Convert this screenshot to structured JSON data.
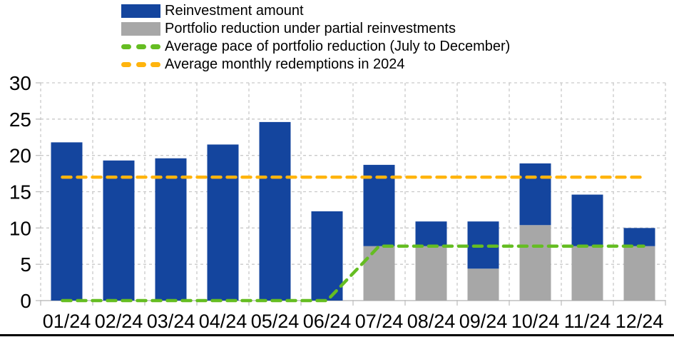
{
  "legend": {
    "items": [
      {
        "label": "Reinvestment amount",
        "color": "#14459E",
        "swatch": "rect"
      },
      {
        "label": "Portfolio reduction under partial reinvestments",
        "color": "#A7A7A7",
        "swatch": "rect"
      },
      {
        "label": "Average pace of portfolio reduction (July to December)",
        "color": "#65BD22",
        "swatch": "dash"
      },
      {
        "label": "Average monthly redemptions in 2024",
        "color": "#FFB40D",
        "swatch": "dash"
      }
    ]
  },
  "chart_data": {
    "type": "bar",
    "stacked": true,
    "title": "",
    "xlabel": "",
    "ylabel": "",
    "ylim": [
      0,
      30
    ],
    "yticks": [
      0,
      5,
      10,
      15,
      20,
      25,
      30
    ],
    "grid": true,
    "legend_position": "top-left",
    "categories": [
      "01/24",
      "02/24",
      "03/24",
      "04/24",
      "05/24",
      "06/24",
      "07/24",
      "08/24",
      "09/24",
      "10/24",
      "11/24",
      "12/24"
    ],
    "series": [
      {
        "name": "Portfolio reduction under partial reinvestments",
        "color": "#A7A7A7",
        "values": [
          0,
          0,
          0,
          0,
          0,
          0,
          7.5,
          7.5,
          4.4,
          10.4,
          7.5,
          7.5
        ]
      },
      {
        "name": "Reinvestment amount",
        "color": "#14459E",
        "values": [
          21.8,
          19.3,
          19.6,
          21.5,
          24.6,
          12.3,
          11.2,
          3.4,
          6.5,
          8.5,
          7.1,
          2.5
        ]
      }
    ],
    "lines": [
      {
        "name": "Average monthly redemptions in 2024",
        "color": "#FFB40D",
        "values": [
          17,
          17,
          17,
          17,
          17,
          17,
          17,
          17,
          17,
          17,
          17,
          17
        ]
      },
      {
        "name": "Average pace of portfolio reduction (July to December)",
        "color": "#65BD22",
        "values": [
          0,
          0,
          0,
          0,
          0,
          0,
          7.5,
          7.5,
          7.5,
          7.5,
          7.5,
          7.5
        ]
      }
    ]
  },
  "colors": {
    "axis": "#BFBFBF",
    "gridline": "#C9C9C9",
    "text": "#000000",
    "bottom_rule": "#000000"
  }
}
